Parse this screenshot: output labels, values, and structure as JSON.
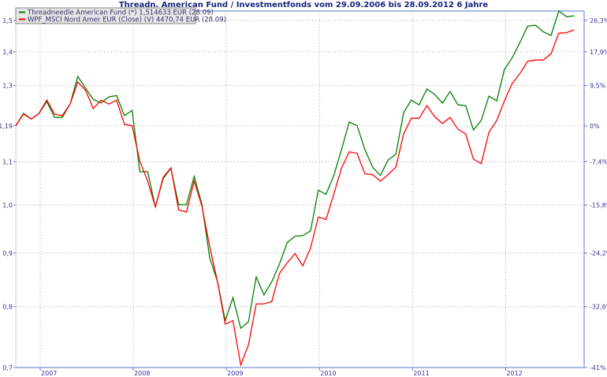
{
  "chart_data": {
    "type": "line",
    "title": "Threadn. American Fund / Investmentfonds vom 29.09.2006 bis 28.09.2012 6 Jahre",
    "y_scale": "log",
    "ylim": [
      0.7,
      1.531
    ],
    "grid": true,
    "legend_placement": "top-left",
    "y_ticks": [
      0.7,
      0.8,
      0.9,
      1.0,
      1.1,
      1.19,
      1.3,
      1.4,
      1.5
    ],
    "y_tick_labels": [
      "0,7",
      "0,8",
      "0,9",
      "1,0",
      "1,1",
      "1,19",
      "1,3",
      "1,4",
      "1,5"
    ],
    "y2_ticks": [
      0.7,
      0.8,
      0.9,
      1.0,
      1.1,
      1.19,
      1.3,
      1.4,
      1.5
    ],
    "y2_tick_labels": [
      "-41%",
      "-32,6%",
      "-24,2%",
      "-15,8%",
      "-7,4%",
      "0%",
      "9,5%",
      "17,9%",
      "26,3%"
    ],
    "x_tick_labels": [
      "2007",
      "2008",
      "2009",
      "2010",
      "2011",
      "2012"
    ],
    "x": [
      "2006-09",
      "2006-10",
      "2006-11",
      "2006-12",
      "2007-01",
      "2007-02",
      "2007-03",
      "2007-04",
      "2007-05",
      "2007-06",
      "2007-07",
      "2007-08",
      "2007-09",
      "2007-10",
      "2007-11",
      "2007-12",
      "2008-01",
      "2008-02",
      "2008-03",
      "2008-04",
      "2008-05",
      "2008-06",
      "2008-07",
      "2008-08",
      "2008-09",
      "2008-10",
      "2008-11",
      "2008-12",
      "2009-01",
      "2009-02",
      "2009-03",
      "2009-04",
      "2009-05",
      "2009-06",
      "2009-07",
      "2009-08",
      "2009-09",
      "2009-10",
      "2009-11",
      "2009-12",
      "2010-01",
      "2010-02",
      "2010-03",
      "2010-04",
      "2010-05",
      "2010-06",
      "2010-07",
      "2010-08",
      "2010-09",
      "2010-10",
      "2010-11",
      "2010-12",
      "2011-01",
      "2011-02",
      "2011-03",
      "2011-04",
      "2011-05",
      "2011-06",
      "2011-07",
      "2011-08",
      "2011-09",
      "2011-10",
      "2011-11",
      "2011-12",
      "2012-01",
      "2012-02",
      "2012-03",
      "2012-04",
      "2012-05",
      "2012-06",
      "2012-07",
      "2012-08",
      "2012-09"
    ],
    "series": [
      {
        "name": "Threadneedle American Fund (*) 1,514633 EUR (28.09)",
        "color": "#008000",
        "values": [
          1.19,
          1.223,
          1.208,
          1.223,
          1.255,
          1.212,
          1.212,
          1.248,
          1.326,
          1.292,
          1.261,
          1.251,
          1.268,
          1.272,
          1.217,
          1.231,
          1.076,
          1.076,
          0.996,
          1.06,
          1.084,
          1.001,
          1.001,
          1.065,
          1.001,
          0.891,
          0.846,
          0.776,
          0.816,
          0.763,
          0.774,
          0.854,
          0.821,
          0.845,
          0.879,
          0.921,
          0.934,
          0.935,
          0.945,
          1.033,
          1.024,
          1.067,
          1.13,
          1.2,
          1.19,
          1.13,
          1.087,
          1.067,
          1.104,
          1.118,
          1.225,
          1.259,
          1.246,
          1.29,
          1.275,
          1.251,
          1.283,
          1.246,
          1.244,
          1.179,
          1.204,
          1.27,
          1.257,
          1.347,
          1.382,
          1.429,
          1.481,
          1.484,
          1.463,
          1.451,
          1.531,
          1.512,
          1.515
        ]
      },
      {
        "name": "WPF_MSCI Nord Amer EUR (Close) (V) 4470,74 EUR (28.09)",
        "color": "#ff0000",
        "values": [
          1.19,
          1.221,
          1.208,
          1.223,
          1.259,
          1.221,
          1.217,
          1.248,
          1.31,
          1.286,
          1.236,
          1.259,
          1.248,
          1.259,
          1.194,
          1.19,
          1.101,
          1.054,
          0.996,
          1.063,
          1.085,
          0.989,
          0.985,
          1.054,
          0.997,
          0.913,
          0.846,
          0.77,
          0.776,
          0.704,
          0.736,
          0.805,
          0.805,
          0.809,
          0.861,
          0.881,
          0.899,
          0.875,
          0.91,
          0.974,
          0.969,
          1.024,
          1.085,
          1.124,
          1.12,
          1.071,
          1.069,
          1.054,
          1.069,
          1.087,
          1.169,
          1.21,
          1.21,
          1.244,
          1.214,
          1.196,
          1.212,
          1.181,
          1.169,
          1.106,
          1.095,
          1.173,
          1.204,
          1.257,
          1.306,
          1.335,
          1.371,
          1.375,
          1.375,
          1.394,
          1.458,
          1.46,
          1.469
        ]
      }
    ]
  }
}
